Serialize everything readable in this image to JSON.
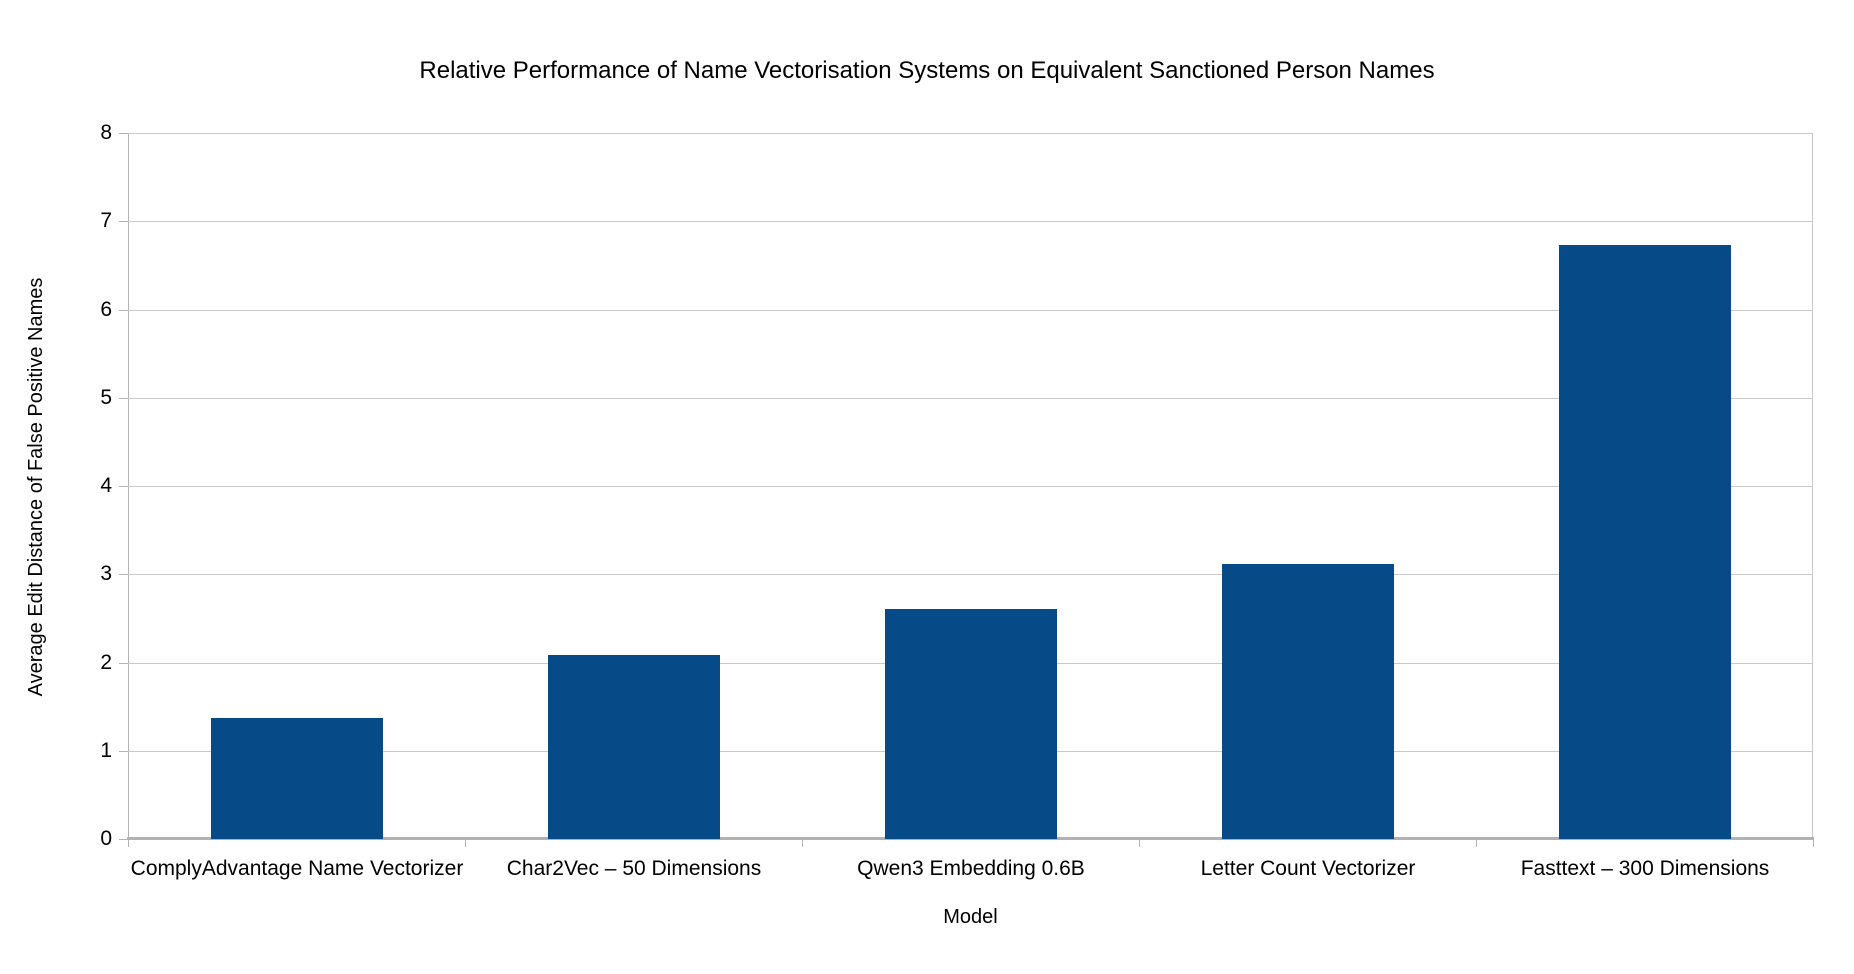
{
  "chart_data": {
    "type": "bar",
    "title": "Relative Performance of Name Vectorisation Systems on Equivalent Sanctioned Person Names",
    "xlabel": "Model",
    "ylabel": "Average Edit Distance of False Positive Names",
    "categories": [
      "ComplyAdvantage Name Vectorizer",
      "Char2Vec – 50 Dimensions",
      "Qwen3 Embedding 0.6B",
      "Letter Count Vectorizer",
      "Fasttext – 300 Dimensions"
    ],
    "values": [
      1.37,
      2.08,
      2.61,
      3.12,
      6.73
    ],
    "ylim": [
      0,
      8
    ],
    "yticks": [
      0,
      1,
      2,
      3,
      4,
      5,
      6,
      7,
      8
    ],
    "grid": true,
    "legend_position": "none",
    "bar_width_fraction": 0.51,
    "colors": {
      "bar": "#064b88",
      "gridline": "#c9c9c9",
      "axis": "#b3b3b3",
      "baseline": "#b1b1b1",
      "text": "#000000",
      "background": "#ffffff"
    }
  }
}
